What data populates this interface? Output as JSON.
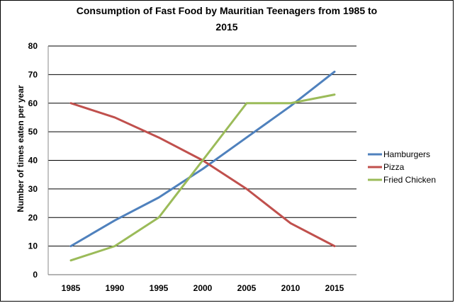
{
  "chart_data": {
    "type": "line",
    "title_line1": "Consumption of Fast Food by Mauritian Teenagers from 1985 to",
    "title_line2": "2015",
    "xlabel": "",
    "ylabel": "Number of times eaten per year",
    "categories": [
      "1985",
      "1990",
      "1995",
      "2000",
      "2005",
      "2010",
      "2015"
    ],
    "yticks": [
      "0",
      "10",
      "20",
      "30",
      "40",
      "50",
      "60",
      "70",
      "80"
    ],
    "ylim": [
      0,
      80
    ],
    "grid": "horizontal",
    "legend_position": "right",
    "series": [
      {
        "name": "Hamburgers",
        "color": "#4f81bd",
        "values": [
          10,
          19,
          27,
          37,
          48,
          59,
          71
        ]
      },
      {
        "name": "Pizza",
        "color": "#c0504d",
        "values": [
          60,
          55,
          48,
          40,
          30,
          18,
          10
        ]
      },
      {
        "name": "Fried Chicken",
        "color": "#9bbb59",
        "values": [
          5,
          10,
          20,
          40,
          60,
          60,
          63
        ]
      }
    ]
  }
}
